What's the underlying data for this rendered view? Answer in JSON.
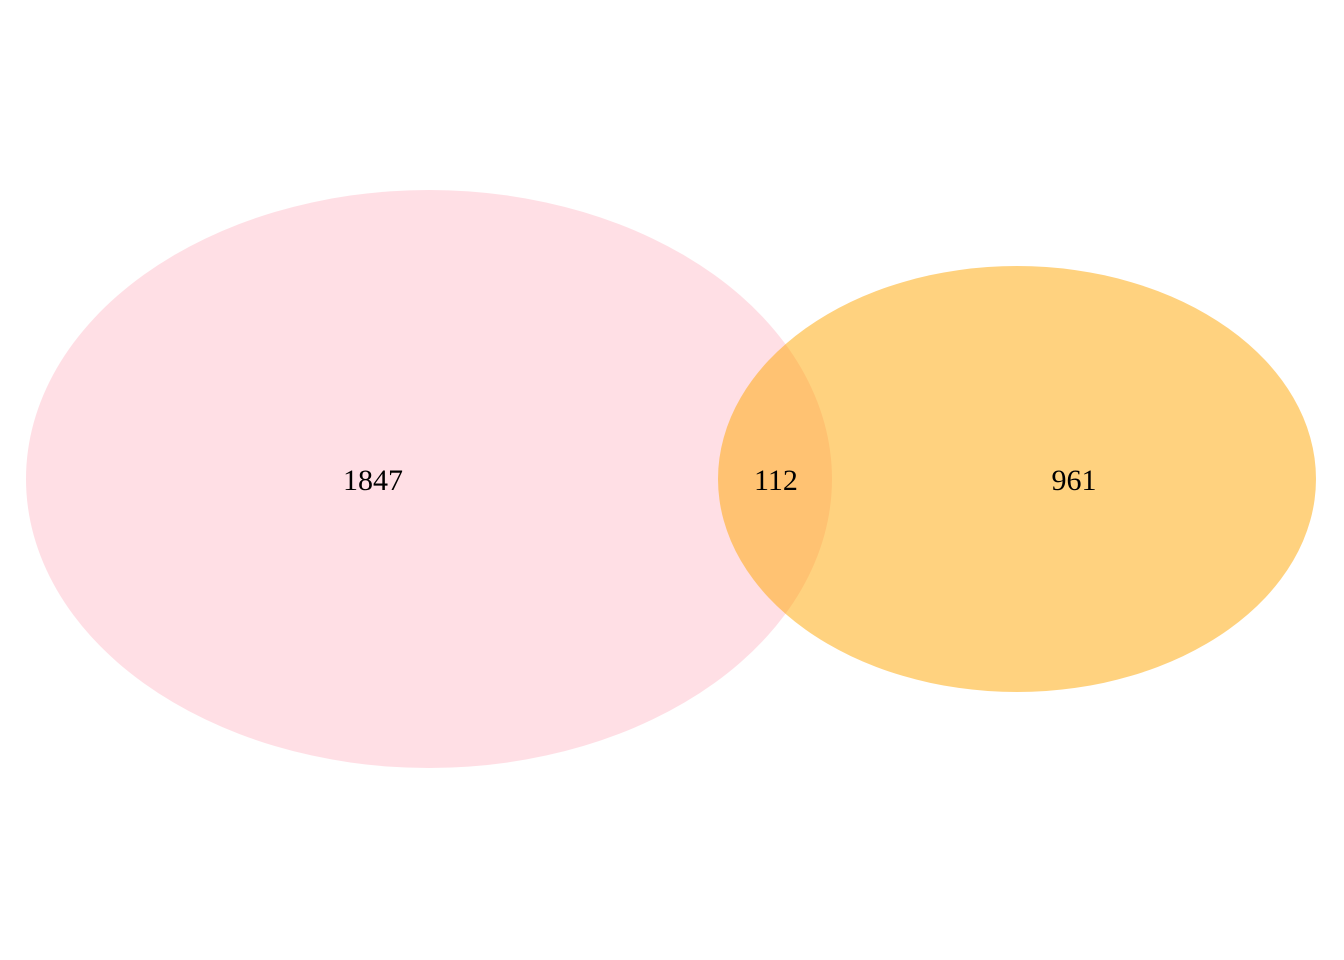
{
  "diagram": {
    "type": "venn",
    "sets": [
      {
        "color": "#FFC0CB",
        "opacity": 0.5
      },
      {
        "color": "#FFA500",
        "opacity": 0.5
      }
    ],
    "regions": {
      "left_only": "1847",
      "intersection": "112",
      "right_only": "961"
    }
  }
}
